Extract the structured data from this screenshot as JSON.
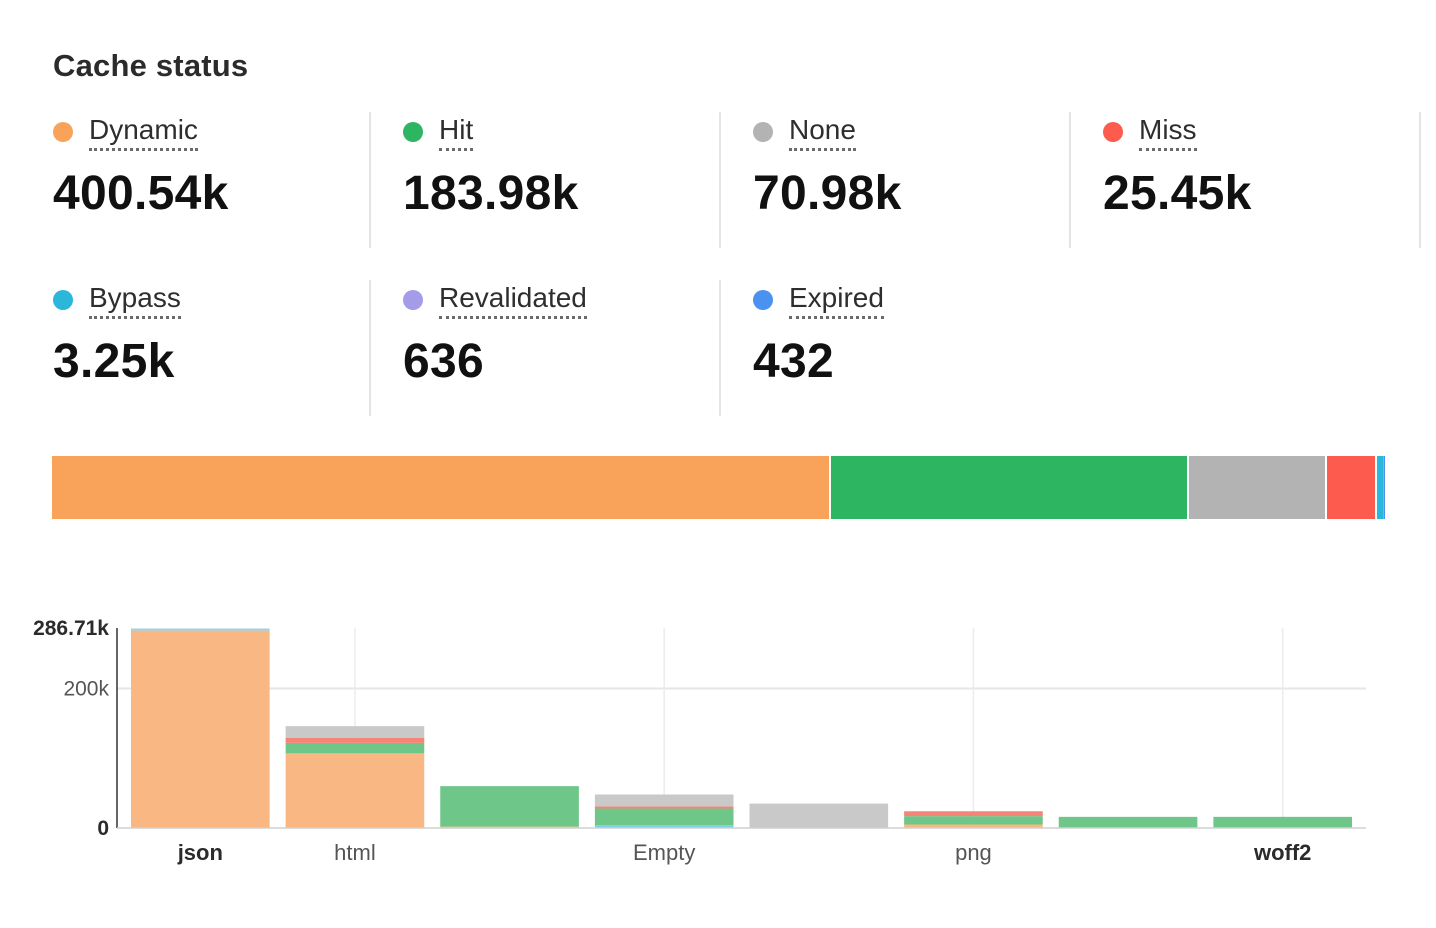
{
  "title": "Cache status",
  "stats": [
    {
      "label": "Dynamic",
      "value": "400.54k",
      "color": "#f9a35a",
      "amount": 400540
    },
    {
      "label": "Hit",
      "value": "183.98k",
      "color": "#2db562",
      "amount": 183980
    },
    {
      "label": "None",
      "value": "70.98k",
      "color": "#b3b3b3",
      "amount": 70980
    },
    {
      "label": "Miss",
      "value": "25.45k",
      "color": "#fc5b4d",
      "amount": 25450
    },
    {
      "label": "Bypass",
      "value": "3.25k",
      "color": "#2bb7da",
      "amount": 3250
    },
    {
      "label": "Revalidated",
      "value": "636",
      "color": "#a49be9",
      "amount": 636
    },
    {
      "label": "Expired",
      "value": "432",
      "color": "#4a91f0",
      "amount": 432
    }
  ],
  "chart_data": {
    "type": "bar",
    "stacked": true,
    "grid": true,
    "ylim": [
      0,
      286710
    ],
    "y_ticks": [
      {
        "value": 0,
        "label": "0"
      },
      {
        "value": 200000,
        "label": "200k"
      },
      {
        "value": 286710,
        "label": "286.71k"
      }
    ],
    "categories": [
      "json",
      "html",
      "",
      "Empty",
      "",
      "png",
      "",
      "woff2"
    ],
    "category_label_bold": [
      true,
      false,
      false,
      false,
      false,
      false,
      false,
      true
    ],
    "series": [
      {
        "name": "Dynamic",
        "color": "#f9b883",
        "values": [
          283000,
          107000,
          2000,
          0,
          0,
          5000,
          0,
          0
        ]
      },
      {
        "name": "Bypass",
        "color": "#7fcde6",
        "values": [
          0,
          0,
          0,
          4000,
          0,
          0,
          0,
          0
        ]
      },
      {
        "name": "Hit",
        "color": "#6fc689",
        "values": [
          0,
          15000,
          58000,
          24000,
          0,
          12000,
          16000,
          16000
        ]
      },
      {
        "name": "Miss",
        "color": "#f58476",
        "values": [
          0,
          7000,
          0,
          3000,
          0,
          7000,
          0,
          0
        ]
      },
      {
        "name": "None",
        "color": "#c9c9c9",
        "values": [
          0,
          17000,
          0,
          17000,
          35000,
          0,
          0,
          0
        ]
      },
      {
        "name": "Expired",
        "color": "#9fd0e6",
        "values": [
          3000,
          0,
          0,
          0,
          0,
          0,
          0,
          0
        ]
      }
    ]
  }
}
